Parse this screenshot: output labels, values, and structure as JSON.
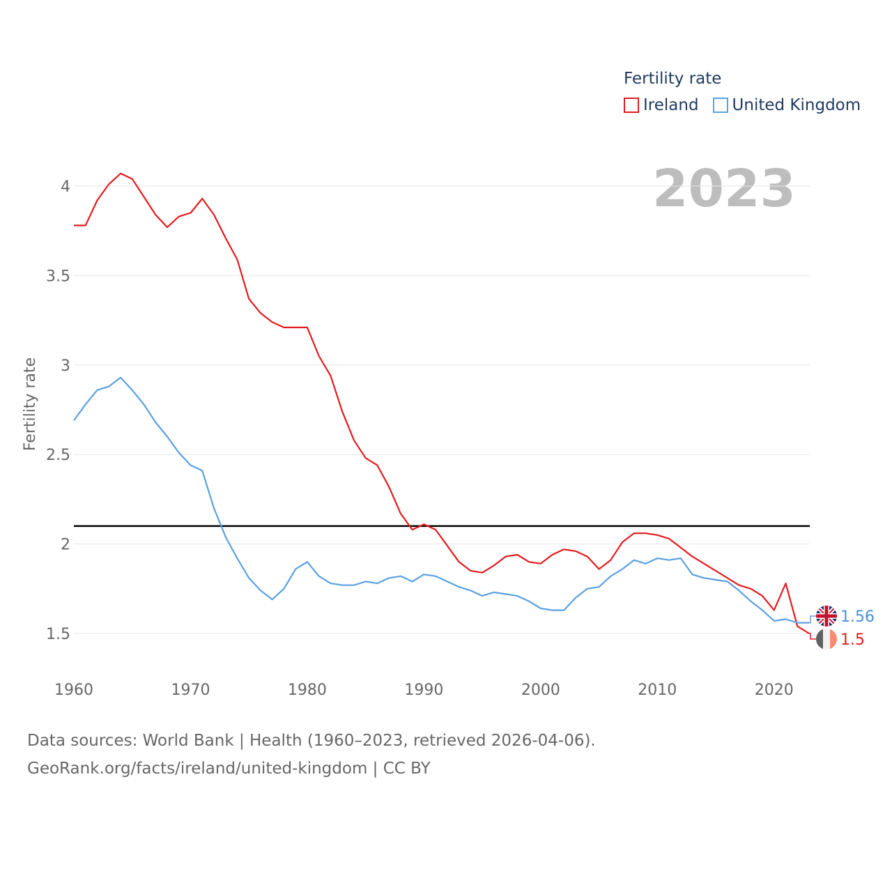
{
  "legend": {
    "title": "Fertility rate",
    "items": [
      {
        "label": "Ireland",
        "color": "#e41a1c"
      },
      {
        "label": "United Kingdom",
        "color": "#5aa0e0"
      }
    ]
  },
  "watermark_year": "2023",
  "footer": {
    "line1": "Data sources: World Bank | Health (1960–2023, retrieved 2026-04-06).",
    "line2": "GeoRank.org/facts/ireland/united-kingdom | CC BY"
  },
  "chart_data": {
    "type": "line",
    "title": "",
    "xlabel": "",
    "ylabel": "Fertility rate",
    "xlim": [
      1960,
      2023
    ],
    "ylim": [
      1.3,
      4.2
    ],
    "x_ticks": [
      1960,
      1970,
      1980,
      1990,
      2000,
      2010,
      2020
    ],
    "y_ticks": [
      1.5,
      2,
      2.5,
      3,
      3.5,
      4
    ],
    "y_tick_labels": [
      "1.5",
      "2",
      "2.5",
      "3",
      "3.5",
      "4"
    ],
    "reference_line": {
      "y": 2.1,
      "color": "#000000"
    },
    "grid": true,
    "x": [
      1960,
      1961,
      1962,
      1963,
      1964,
      1965,
      1966,
      1967,
      1968,
      1969,
      1970,
      1971,
      1972,
      1973,
      1974,
      1975,
      1976,
      1977,
      1978,
      1979,
      1980,
      1981,
      1982,
      1983,
      1984,
      1985,
      1986,
      1987,
      1988,
      1989,
      1990,
      1991,
      1992,
      1993,
      1994,
      1995,
      1996,
      1997,
      1998,
      1999,
      2000,
      2001,
      2002,
      2003,
      2004,
      2005,
      2006,
      2007,
      2008,
      2009,
      2010,
      2011,
      2012,
      2013,
      2014,
      2015,
      2016,
      2017,
      2018,
      2019,
      2020,
      2021,
      2022,
      2023
    ],
    "series": [
      {
        "name": "Ireland",
        "color": "#e41a1c",
        "end_label": "1.5",
        "end_label_color": "#e41a1c",
        "values": [
          3.78,
          3.78,
          3.92,
          4.01,
          4.07,
          4.04,
          3.94,
          3.84,
          3.77,
          3.83,
          3.85,
          3.93,
          3.84,
          3.71,
          3.59,
          3.37,
          3.29,
          3.24,
          3.21,
          3.21,
          3.21,
          3.05,
          2.94,
          2.74,
          2.58,
          2.48,
          2.44,
          2.32,
          2.17,
          2.08,
          2.11,
          2.08,
          1.99,
          1.9,
          1.85,
          1.84,
          1.88,
          1.93,
          1.94,
          1.9,
          1.89,
          1.94,
          1.97,
          1.96,
          1.93,
          1.86,
          1.91,
          2.01,
          2.06,
          2.06,
          2.05,
          2.03,
          1.98,
          1.93,
          1.89,
          1.85,
          1.81,
          1.77,
          1.75,
          1.71,
          1.63,
          1.78,
          1.54,
          1.5
        ]
      },
      {
        "name": "United Kingdom",
        "color": "#5aa0e0",
        "end_label": "1.56",
        "end_label_color": "#4a90d9",
        "values": [
          2.69,
          2.78,
          2.86,
          2.88,
          2.93,
          2.86,
          2.78,
          2.68,
          2.6,
          2.51,
          2.44,
          2.41,
          2.2,
          2.04,
          1.92,
          1.81,
          1.74,
          1.69,
          1.75,
          1.86,
          1.9,
          1.82,
          1.78,
          1.77,
          1.77,
          1.79,
          1.78,
          1.81,
          1.82,
          1.79,
          1.83,
          1.82,
          1.79,
          1.76,
          1.74,
          1.71,
          1.73,
          1.72,
          1.71,
          1.68,
          1.64,
          1.63,
          1.63,
          1.7,
          1.75,
          1.76,
          1.82,
          1.86,
          1.91,
          1.89,
          1.92,
          1.91,
          1.92,
          1.83,
          1.81,
          1.8,
          1.79,
          1.74,
          1.68,
          1.63,
          1.57,
          1.58,
          1.56,
          1.56
        ]
      }
    ]
  }
}
